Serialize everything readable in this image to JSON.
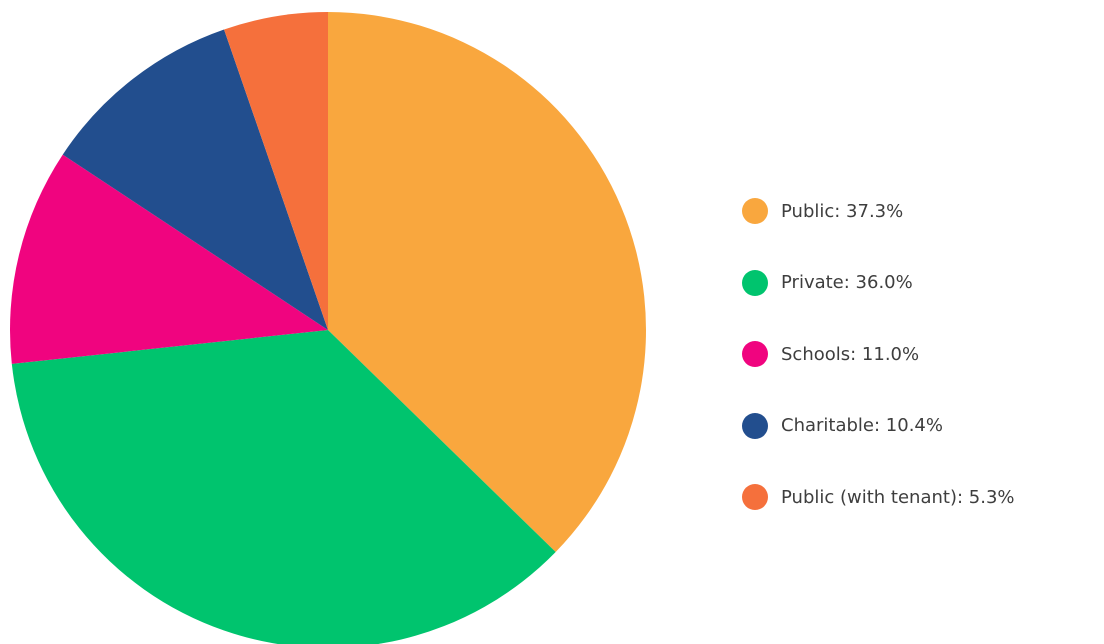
{
  "chart_data": {
    "type": "pie",
    "unit": "%",
    "start_angle_deg": 0,
    "direction": "clockwise",
    "legend_position": "right",
    "slices": [
      {
        "label": "Public",
        "value": 37.3,
        "color": "#f9a73e"
      },
      {
        "label": "Private",
        "value": 36.0,
        "color": "#00c46e"
      },
      {
        "label": "Schools",
        "value": 11.0,
        "color": "#f0047f"
      },
      {
        "label": "Charitable",
        "value": 10.4,
        "color": "#224e8e"
      },
      {
        "label": "Public (with tenant)",
        "value": 5.3,
        "color": "#f5703c"
      }
    ],
    "legend": [
      "Public: 37.3%",
      "Private: 36.0%",
      "Schools: 11.0%",
      "Charitable: 10.4%",
      "Public (with tenant): 5.3%"
    ]
  }
}
